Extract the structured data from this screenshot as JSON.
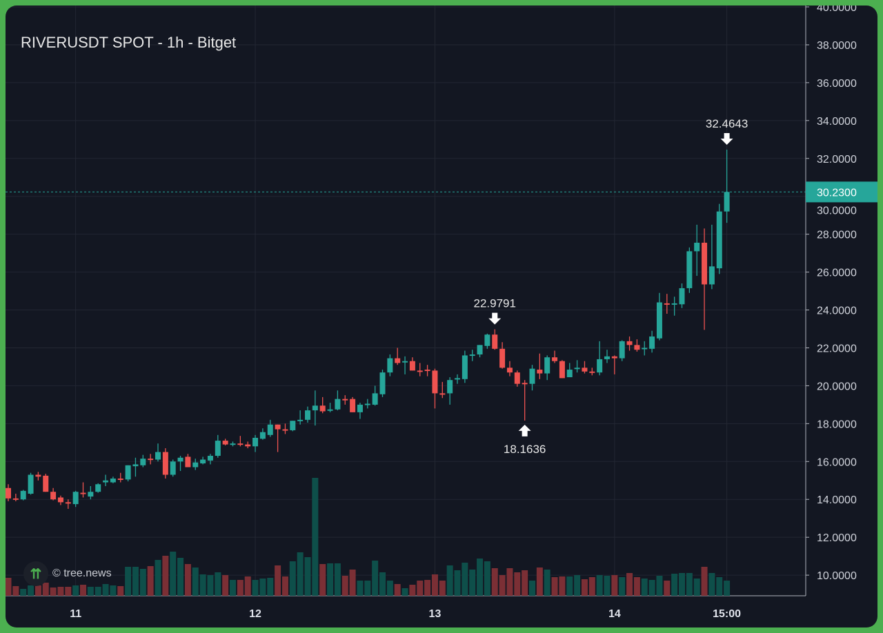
{
  "title": "RIVERUSDT SPOT - 1h - Bitget",
  "watermark": "© tree.news",
  "colors": {
    "up": "#26a69a",
    "down": "#ef5350",
    "vol_up": "#0e4f4a",
    "vol_down": "#7b2f35",
    "bg": "#131722",
    "grid": "#232733",
    "frame": "#4caf50",
    "last_price": "#26a69a"
  },
  "chart_data": {
    "type": "candlestick",
    "title": "RIVERUSDT SPOT - 1h - Bitget",
    "interval": "1h",
    "ylim": [
      9,
      40
    ],
    "y_ticks": [
      "40.0000",
      "38.0000",
      "36.0000",
      "34.0000",
      "32.0000",
      "30.0000",
      "28.0000",
      "26.0000",
      "24.0000",
      "22.0000",
      "20.0000",
      "18.0000",
      "16.0000",
      "14.0000",
      "12.0000",
      "10.0000"
    ],
    "x_ticks": [
      {
        "label": "11",
        "index": 9
      },
      {
        "label": "12",
        "index": 33
      },
      {
        "label": "13",
        "index": 57
      },
      {
        "label": "14",
        "index": 81
      },
      {
        "label": "15:00",
        "index": 96
      }
    ],
    "last_price": "30.2300",
    "annotations": [
      {
        "label": "22.9791",
        "index": 65,
        "price": 22.9791,
        "direction": "down"
      },
      {
        "label": "18.1636",
        "index": 69,
        "price": 18.1636,
        "direction": "up"
      },
      {
        "label": "32.4643",
        "index": 96,
        "price": 32.4643,
        "direction": "down"
      }
    ],
    "ohlc": [
      [
        14.6,
        14.8,
        13.9,
        14.05
      ],
      [
        14.05,
        14.3,
        13.9,
        14.0
      ],
      [
        14.0,
        14.5,
        13.95,
        14.45
      ],
      [
        14.3,
        15.4,
        14.25,
        15.3
      ],
      [
        15.3,
        15.45,
        15.0,
        15.2
      ],
      [
        15.25,
        15.35,
        14.4,
        14.4
      ],
      [
        14.4,
        14.6,
        13.95,
        14.0
      ],
      [
        14.1,
        14.2,
        13.7,
        13.85
      ],
      [
        13.85,
        14.0,
        13.5,
        13.8
      ],
      [
        13.75,
        14.45,
        13.6,
        14.4
      ],
      [
        14.35,
        14.9,
        14.1,
        14.3
      ],
      [
        14.15,
        14.7,
        14.0,
        14.4
      ],
      [
        14.4,
        14.85,
        14.35,
        14.8
      ],
      [
        14.9,
        15.3,
        14.7,
        15.0
      ],
      [
        14.9,
        15.2,
        14.85,
        15.1
      ],
      [
        15.1,
        15.4,
        14.9,
        15.05
      ],
      [
        15.05,
        15.8,
        14.95,
        15.8
      ],
      [
        15.75,
        16.2,
        15.2,
        15.85
      ],
      [
        15.8,
        16.35,
        15.7,
        16.15
      ],
      [
        16.15,
        16.4,
        15.85,
        16.1
      ],
      [
        16.1,
        16.95,
        16.0,
        16.5
      ],
      [
        16.5,
        16.7,
        15.1,
        15.3
      ],
      [
        15.3,
        16.1,
        15.2,
        16.0
      ],
      [
        16.0,
        16.3,
        15.5,
        16.2
      ],
      [
        16.25,
        16.4,
        15.7,
        15.7
      ],
      [
        15.7,
        16.15,
        15.55,
        15.95
      ],
      [
        15.9,
        16.25,
        15.85,
        16.1
      ],
      [
        16.05,
        16.4,
        15.85,
        16.3
      ],
      [
        16.3,
        17.4,
        16.2,
        17.1
      ],
      [
        17.1,
        17.2,
        16.85,
        16.9
      ],
      [
        16.9,
        17.05,
        16.8,
        16.95
      ],
      [
        16.95,
        17.35,
        16.8,
        16.9
      ],
      [
        16.9,
        17.05,
        16.7,
        16.8
      ],
      [
        16.8,
        17.4,
        16.5,
        17.25
      ],
      [
        17.2,
        17.75,
        17.15,
        17.55
      ],
      [
        17.4,
        18.2,
        17.3,
        17.95
      ],
      [
        17.95,
        17.95,
        16.5,
        17.7
      ],
      [
        17.7,
        18.0,
        17.45,
        17.65
      ],
      [
        17.65,
        18.15,
        17.6,
        18.15
      ],
      [
        18.15,
        18.7,
        17.95,
        18.2
      ],
      [
        18.2,
        18.9,
        18.05,
        18.7
      ],
      [
        18.7,
        19.75,
        17.9,
        18.95
      ],
      [
        18.95,
        19.4,
        18.55,
        18.65
      ],
      [
        18.7,
        19.1,
        18.6,
        18.75
      ],
      [
        18.75,
        19.75,
        18.7,
        19.3
      ],
      [
        19.3,
        19.5,
        19.0,
        19.25
      ],
      [
        19.3,
        19.4,
        18.6,
        18.6
      ],
      [
        18.6,
        19.1,
        18.25,
        19.0
      ],
      [
        19.0,
        19.3,
        18.8,
        19.05
      ],
      [
        19.0,
        20.0,
        18.95,
        19.6
      ],
      [
        19.55,
        20.85,
        19.4,
        20.7
      ],
      [
        20.7,
        21.65,
        20.5,
        21.45
      ],
      [
        21.45,
        22.0,
        21.1,
        21.2
      ],
      [
        21.25,
        21.55,
        20.6,
        21.3
      ],
      [
        21.3,
        21.5,
        20.8,
        20.8
      ],
      [
        20.8,
        21.2,
        20.5,
        20.75
      ],
      [
        20.85,
        21.1,
        20.5,
        20.8
      ],
      [
        20.8,
        20.9,
        18.8,
        19.6
      ],
      [
        19.6,
        20.2,
        19.35,
        19.55
      ],
      [
        19.6,
        20.45,
        19.0,
        20.3
      ],
      [
        20.35,
        20.6,
        20.1,
        20.4
      ],
      [
        20.35,
        21.85,
        20.15,
        21.6
      ],
      [
        21.6,
        21.9,
        21.3,
        21.65
      ],
      [
        21.65,
        22.15,
        21.5,
        22.15
      ],
      [
        22.1,
        22.75,
        21.95,
        22.7
      ],
      [
        22.7,
        22.9791,
        21.9,
        21.95
      ],
      [
        21.95,
        22.3,
        20.9,
        20.95
      ],
      [
        20.95,
        21.3,
        20.5,
        20.7
      ],
      [
        20.7,
        20.8,
        19.95,
        20.1
      ],
      [
        20.15,
        20.3,
        18.1636,
        20.1
      ],
      [
        20.1,
        21.1,
        19.75,
        20.9
      ],
      [
        20.85,
        21.7,
        20.35,
        20.65
      ],
      [
        20.65,
        21.6,
        20.3,
        21.5
      ],
      [
        21.5,
        21.85,
        21.2,
        21.3
      ],
      [
        21.3,
        21.35,
        20.4,
        20.4
      ],
      [
        20.45,
        21.2,
        20.45,
        20.85
      ],
      [
        20.9,
        21.35,
        20.7,
        20.95
      ],
      [
        20.95,
        21.3,
        20.65,
        20.75
      ],
      [
        20.75,
        20.95,
        20.55,
        20.7
      ],
      [
        20.7,
        22.35,
        20.55,
        21.4
      ],
      [
        21.4,
        21.9,
        21.2,
        21.55
      ],
      [
        21.55,
        21.6,
        20.6,
        21.45
      ],
      [
        21.45,
        22.4,
        21.3,
        22.35
      ],
      [
        22.35,
        22.6,
        21.85,
        22.15
      ],
      [
        22.15,
        22.45,
        21.8,
        21.9
      ],
      [
        21.95,
        22.35,
        21.6,
        22.0
      ],
      [
        21.95,
        22.9,
        21.75,
        22.6
      ],
      [
        22.5,
        24.9,
        22.4,
        24.4
      ],
      [
        24.35,
        24.85,
        23.8,
        24.3
      ],
      [
        24.3,
        24.7,
        23.7,
        24.35
      ],
      [
        24.3,
        25.4,
        24.1,
        25.15
      ],
      [
        25.15,
        27.3,
        24.9,
        27.1
      ],
      [
        27.1,
        28.5,
        25.8,
        27.55
      ],
      [
        27.55,
        28.3,
        22.95,
        25.35
      ],
      [
        25.35,
        28.5,
        25.1,
        26.3
      ],
      [
        26.2,
        29.6,
        25.9,
        29.2
      ],
      [
        29.2,
        32.4643,
        28.6,
        30.23
      ]
    ],
    "volume": [
      26,
      14,
      10,
      15,
      15,
      19,
      12,
      13,
      13,
      15,
      16,
      13,
      13,
      17,
      15,
      14,
      42,
      42,
      39,
      43,
      52,
      58,
      64,
      55,
      46,
      41,
      31,
      30,
      34,
      30,
      23,
      23,
      28,
      23,
      25,
      26,
      44,
      28,
      50,
      63,
      56,
      171,
      46,
      47,
      47,
      29,
      38,
      22,
      22,
      51,
      34,
      22,
      17,
      11,
      16,
      22,
      23,
      31,
      22,
      44,
      37,
      48,
      38,
      54,
      50,
      40,
      30,
      40,
      34,
      37,
      22,
      41,
      38,
      27,
      28,
      28,
      30,
      24,
      27,
      30,
      29,
      30,
      27,
      33,
      27,
      25,
      23,
      29,
      22,
      32,
      33,
      33,
      25,
      42,
      33,
      27,
      22
    ]
  }
}
